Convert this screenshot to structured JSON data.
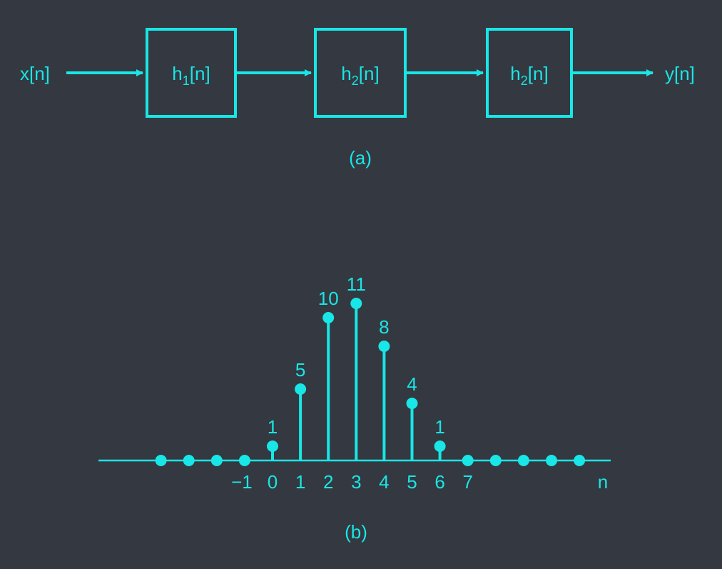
{
  "colors": {
    "background": "#343840",
    "accent": "#19e6e6"
  },
  "block_diagram": {
    "input_label": "x[n]",
    "output_label": "y[n]",
    "blocks": [
      {
        "base": "h",
        "sub": "1",
        "suffix": "[n]"
      },
      {
        "base": "h",
        "sub": "2",
        "suffix": "[n]"
      },
      {
        "base": "h",
        "sub": "2",
        "suffix": "[n]"
      }
    ],
    "caption": "(a)"
  },
  "chart_data": {
    "type": "stem",
    "n": [
      -4,
      -3,
      -2,
      -1,
      0,
      1,
      2,
      3,
      4,
      5,
      6,
      7,
      8,
      9,
      10,
      11
    ],
    "values": [
      0,
      0,
      0,
      0,
      1,
      5,
      10,
      11,
      8,
      4,
      1,
      0,
      0,
      0,
      0,
      0
    ],
    "value_labels": [
      "",
      "",
      "",
      "",
      "1",
      "5",
      "10",
      "11",
      "8",
      "4",
      "1",
      "",
      "",
      "",
      "",
      ""
    ],
    "tick_labels": [
      "−1",
      "0",
      "1",
      "2",
      "3",
      "4",
      "5",
      "6",
      "7"
    ],
    "xlabel": "n",
    "caption": "(b)"
  }
}
